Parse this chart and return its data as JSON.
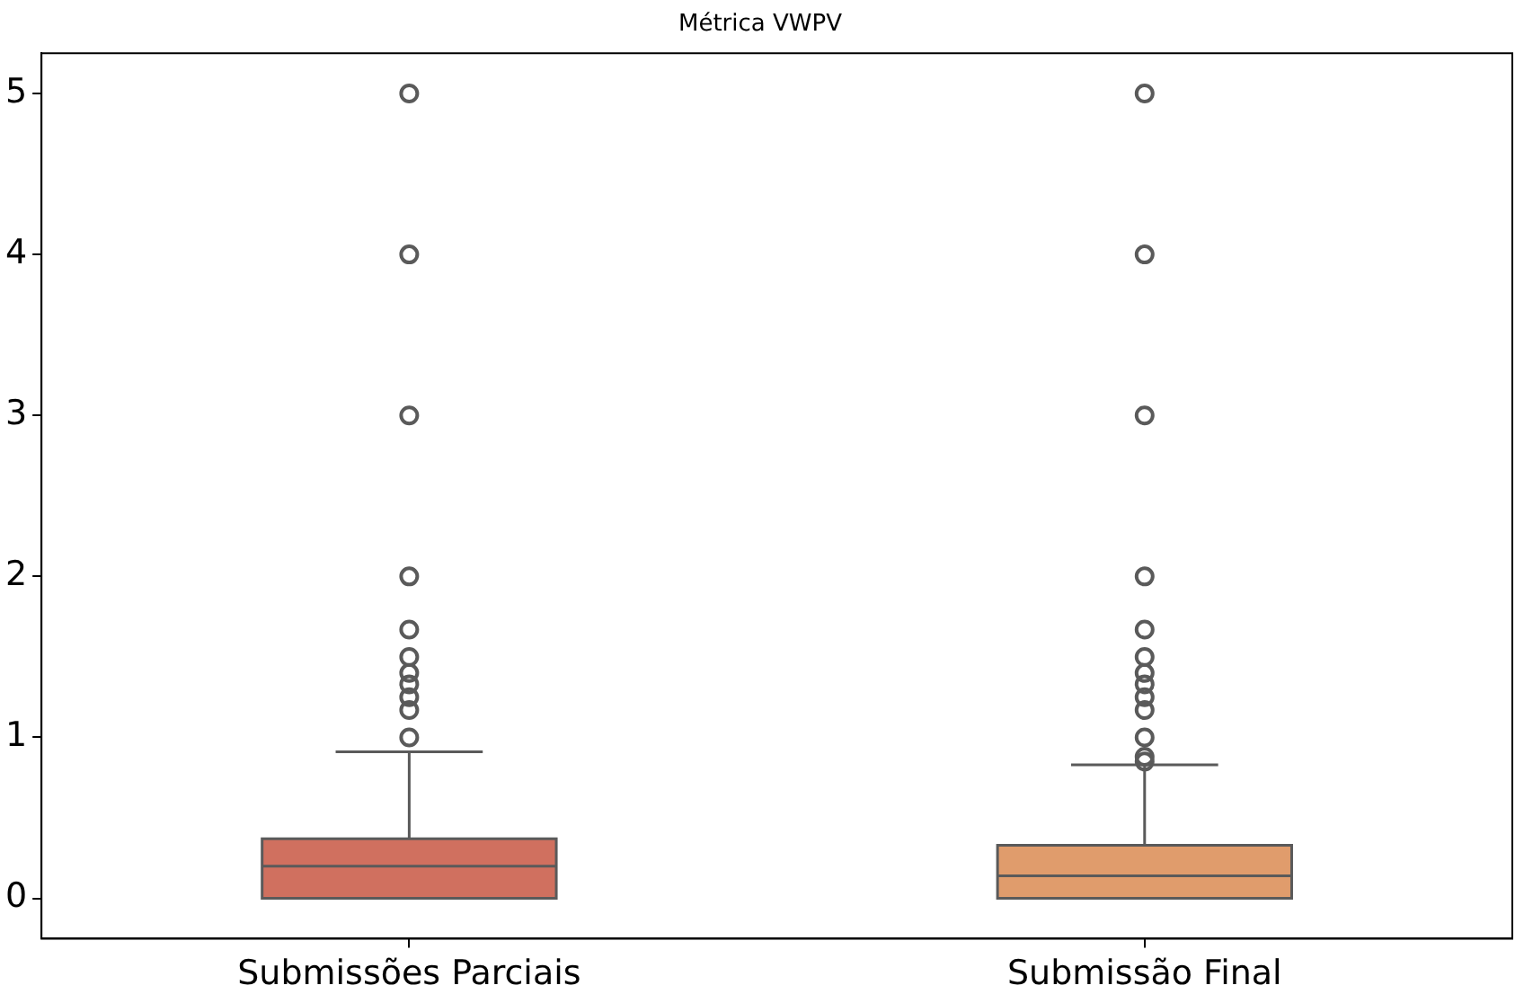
{
  "chart_data": {
    "type": "box",
    "title": "Métrica VWPV",
    "categories": [
      "Submissões Parciais",
      "Submissão Final"
    ],
    "colors": [
      "#d0705f",
      "#e09c6c"
    ],
    "boxes": [
      {
        "low": 0,
        "q1": 0,
        "median": 0.2,
        "q3": 0.37,
        "high": 0.91,
        "outliers": [
          1,
          1.17,
          1.25,
          1.33,
          1.4,
          1.5,
          1.67,
          2,
          3,
          4,
          5
        ]
      },
      {
        "low": 0,
        "q1": 0,
        "median": 0.14,
        "q3": 0.33,
        "high": 0.83,
        "outliers": [
          0.85,
          0.88,
          1,
          1.17,
          1.25,
          1.33,
          1.4,
          1.5,
          1.67,
          2,
          3,
          4,
          5
        ]
      }
    ],
    "ylim": [
      -0.25,
      5.25
    ],
    "yticks": [
      0,
      1,
      2,
      3,
      4,
      5
    ],
    "grid": false,
    "legend": false
  }
}
